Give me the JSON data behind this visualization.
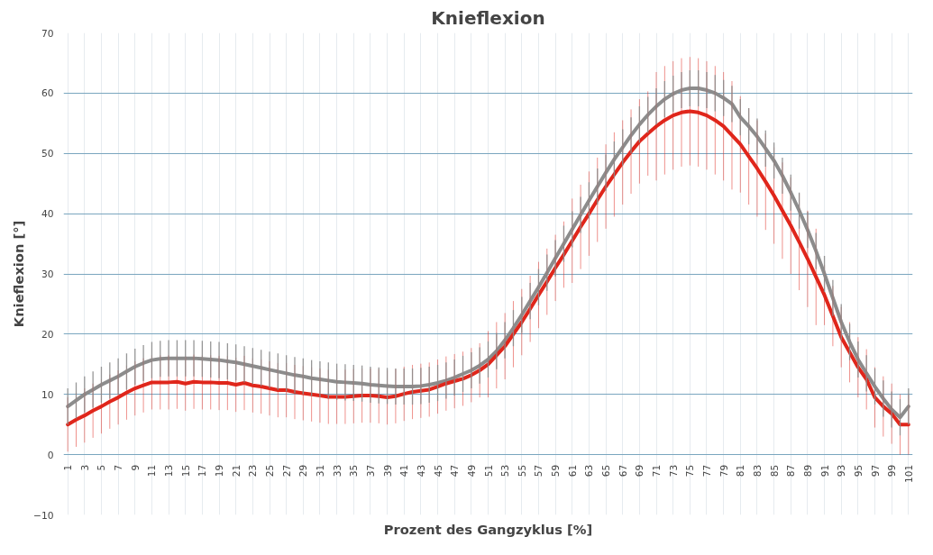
{
  "chart_data": {
    "type": "line",
    "title": "Knieflexion",
    "xlabel": "Prozent des Gangzyklus [%]",
    "ylabel": "Knieflexion [°]",
    "x": [
      1,
      2,
      3,
      4,
      5,
      6,
      7,
      8,
      9,
      10,
      11,
      12,
      13,
      14,
      15,
      16,
      17,
      18,
      19,
      20,
      21,
      22,
      23,
      24,
      25,
      26,
      27,
      28,
      29,
      30,
      31,
      32,
      33,
      34,
      35,
      36,
      37,
      38,
      39,
      40,
      41,
      42,
      43,
      44,
      45,
      46,
      47,
      48,
      49,
      50,
      51,
      52,
      53,
      54,
      55,
      56,
      57,
      58,
      59,
      60,
      61,
      62,
      63,
      64,
      65,
      66,
      67,
      68,
      69,
      70,
      71,
      72,
      73,
      74,
      75,
      76,
      77,
      78,
      79,
      80,
      81,
      82,
      83,
      84,
      85,
      86,
      87,
      88,
      89,
      90,
      91,
      92,
      93,
      94,
      95,
      96,
      97,
      98,
      99,
      100,
      101
    ],
    "series": [
      {
        "color": "#8c8c8c",
        "values": [
          8,
          9,
          10,
          10.8,
          11.6,
          12.3,
          13,
          13.8,
          14.6,
          15.2,
          15.7,
          15.9,
          16,
          16,
          16,
          16,
          15.9,
          15.8,
          15.7,
          15.5,
          15.3,
          15,
          14.7,
          14.4,
          14.1,
          13.8,
          13.5,
          13.2,
          13,
          12.7,
          12.5,
          12.3,
          12.1,
          12,
          11.9,
          11.8,
          11.6,
          11.5,
          11.4,
          11.3,
          11.3,
          11.3,
          11.4,
          11.6,
          11.9,
          12.3,
          12.8,
          13.4,
          14,
          14.8,
          15.8,
          17.2,
          19,
          21,
          23.2,
          25.5,
          27.8,
          30.2,
          32.6,
          35,
          37.4,
          39.8,
          42.2,
          44.5,
          46.8,
          49,
          51,
          53,
          54.8,
          56.4,
          57.8,
          59,
          59.9,
          60.5,
          60.8,
          60.8,
          60.5,
          60,
          59.2,
          58.2,
          56,
          54.5,
          52.8,
          50.8,
          48.8,
          46.3,
          43.5,
          40.5,
          37.3,
          33.8,
          30,
          26,
          22,
          18.7,
          15.8,
          13.5,
          11.3,
          9.3,
          7.5,
          6.2,
          8
        ],
        "errors": [
          3,
          3,
          3,
          3,
          3,
          3,
          3,
          3,
          3,
          3,
          3,
          3,
          3,
          3,
          3,
          3,
          3,
          3,
          3,
          3,
          3,
          3,
          3,
          3,
          3,
          3,
          3,
          3,
          3,
          3,
          3,
          3,
          3,
          3,
          3,
          3,
          3,
          3,
          3,
          3,
          3,
          3,
          3,
          3,
          3,
          3,
          3,
          3,
          3,
          3,
          3,
          3,
          3,
          3,
          3,
          3,
          3,
          3,
          3,
          3,
          3,
          3,
          3,
          3,
          3,
          3,
          3,
          3,
          3,
          3,
          3,
          3,
          3,
          3,
          3,
          3,
          3,
          3,
          3,
          3,
          3,
          3,
          3,
          3,
          3,
          3,
          3,
          3,
          3,
          3,
          3,
          3,
          3,
          3,
          3,
          3,
          3,
          3,
          3,
          3,
          3
        ]
      },
      {
        "color": "#e0261b",
        "values": [
          5,
          5.8,
          6.5,
          7.3,
          8,
          8.8,
          9.5,
          10.3,
          11,
          11.5,
          12,
          12,
          12,
          12.1,
          11.8,
          12.1,
          12,
          12,
          11.9,
          11.9,
          11.6,
          11.9,
          11.5,
          11.3,
          11,
          10.7,
          10.7,
          10.4,
          10.2,
          10,
          9.8,
          9.6,
          9.6,
          9.6,
          9.7,
          9.8,
          9.8,
          9.7,
          9.5,
          9.7,
          10.1,
          10.4,
          10.6,
          10.8,
          11.3,
          11.8,
          12.2,
          12.6,
          13.2,
          14,
          15,
          16.5,
          18,
          20,
          22,
          24.2,
          26.5,
          28.7,
          31,
          33.2,
          35.5,
          37.8,
          40,
          42.3,
          44.5,
          46.5,
          48.5,
          50.3,
          52,
          53.3,
          54.5,
          55.5,
          56.3,
          56.8,
          57,
          56.8,
          56.3,
          55.5,
          54.5,
          53,
          51.5,
          49.5,
          47.5,
          45.3,
          43,
          40.5,
          38,
          35.3,
          32.5,
          29.5,
          26.5,
          23,
          19.5,
          17,
          14.5,
          12.5,
          9.5,
          8,
          6.8,
          5,
          5
        ],
        "errors": [
          4.5,
          4.5,
          4.5,
          4.5,
          4.5,
          4.5,
          4.5,
          4.5,
          4.5,
          4.5,
          4.5,
          4.5,
          4.5,
          4.5,
          4.5,
          4.5,
          4.5,
          4.5,
          4.5,
          4.5,
          4.5,
          4.5,
          4.5,
          4.5,
          4.5,
          4.5,
          4.5,
          4.5,
          4.5,
          4.5,
          4.5,
          4.5,
          4.5,
          4.5,
          4.5,
          4.5,
          4.5,
          4.5,
          4.5,
          4.5,
          4.5,
          4.5,
          4.5,
          4.5,
          4.5,
          4.5,
          4.5,
          4.5,
          4.5,
          4.5,
          5.5,
          5.5,
          5.5,
          5.5,
          5.5,
          5.5,
          5.5,
          5.5,
          5.5,
          5.5,
          7,
          7,
          7,
          7,
          7,
          7,
          7,
          7,
          7,
          7,
          9,
          9,
          9,
          9,
          9,
          9,
          9,
          9,
          9,
          9,
          8,
          8,
          8,
          8,
          8,
          8,
          8,
          8,
          8,
          8,
          5,
          5,
          5,
          5,
          5,
          5,
          5,
          5,
          5,
          5,
          5
        ]
      }
    ],
    "xlim": [
      0.5,
      101.5
    ],
    "ylim": [
      -10,
      70
    ],
    "xticks": [
      1,
      3,
      5,
      7,
      9,
      11,
      13,
      15,
      17,
      19,
      21,
      23,
      25,
      27,
      29,
      31,
      33,
      35,
      37,
      39,
      41,
      43,
      45,
      47,
      49,
      51,
      53,
      55,
      57,
      59,
      61,
      63,
      65,
      67,
      69,
      71,
      73,
      75,
      77,
      79,
      81,
      83,
      85,
      87,
      89,
      91,
      93,
      95,
      97,
      99,
      101
    ],
    "yticks": [
      -10,
      0,
      10,
      20,
      30,
      40,
      50,
      60,
      70
    ],
    "grid": true
  }
}
